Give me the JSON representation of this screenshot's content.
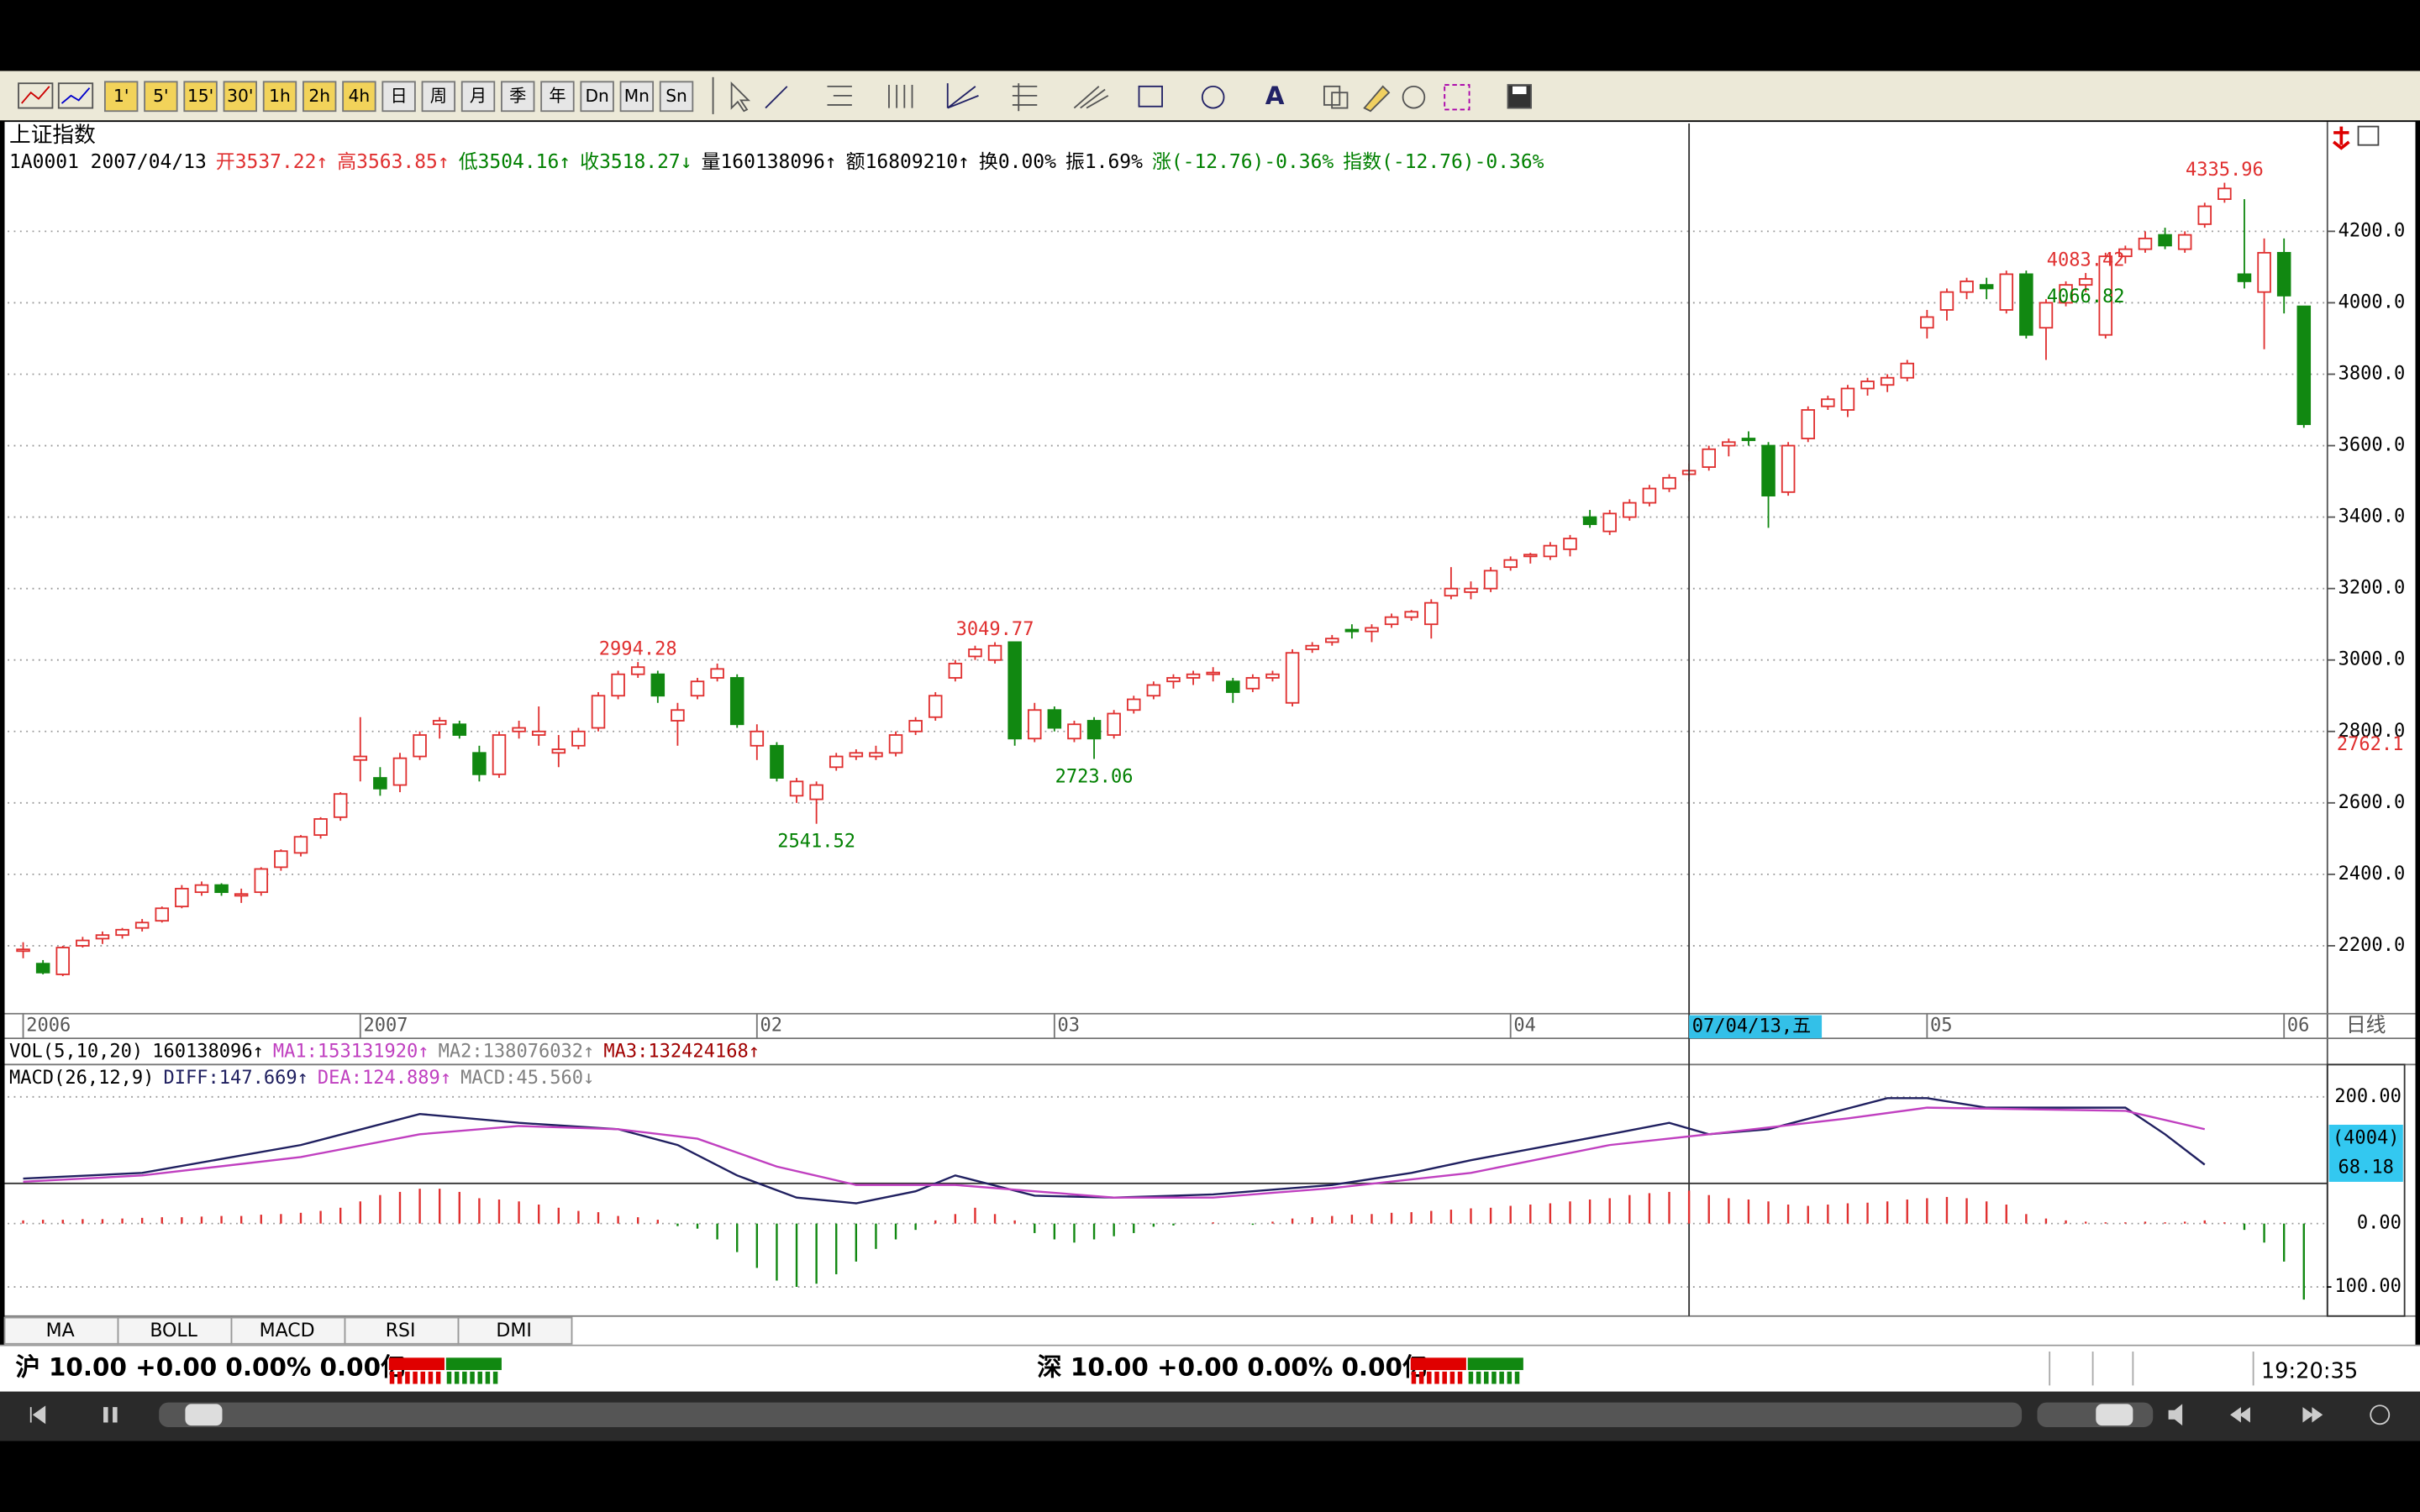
{
  "toolbar": {
    "buttons": [
      "1'",
      "5'",
      "15'",
      "30'",
      "1h",
      "2h",
      "4h",
      "日",
      "周",
      "月",
      "季",
      "年",
      "Dn",
      "Mn",
      "Sn"
    ]
  },
  "quote": {
    "name": "上证指数",
    "fields": [
      {
        "text": "1A0001 2007/04/13",
        "color": "#000000"
      },
      {
        "text": "开3537.22↑",
        "color": "#e03030"
      },
      {
        "text": "高3563.85↑",
        "color": "#e03030"
      },
      {
        "text": "低3504.16↑",
        "color": "#008000"
      },
      {
        "text": "收3518.27↓",
        "color": "#008000"
      },
      {
        "text": "量160138096↑",
        "color": "#000000"
      },
      {
        "text": "额16809210↑",
        "color": "#000000"
      },
      {
        "text": "换0.00%",
        "color": "#000000"
      },
      {
        "text": "振1.69%",
        "color": "#000000"
      },
      {
        "text": "涨(-12.76)-0.36%",
        "color": "#008000"
      },
      {
        "text": "指数(-12.76)-0.36%",
        "color": "#008000"
      }
    ]
  },
  "chart_data": [
    {
      "type": "candlestick",
      "up_color": "#e03030",
      "down_color": "#118811",
      "ylim": [
        2010,
        4502
      ],
      "yticks": [
        {
          "value": 2200,
          "label": "2200.0"
        },
        {
          "value": 2400,
          "label": "2400.0"
        },
        {
          "value": 2600,
          "label": "2600.0"
        },
        {
          "value": 2800,
          "label": "2800.0"
        },
        {
          "value": 3000,
          "label": "3000.0"
        },
        {
          "value": 3200,
          "label": "3200.0"
        },
        {
          "value": 3400,
          "label": "3400.0"
        },
        {
          "value": 3600,
          "label": "3600.0"
        },
        {
          "value": 3800,
          "label": "3800.0"
        },
        {
          "value": 4000,
          "label": "4000.0"
        },
        {
          "value": 4200,
          "label": "4200.0"
        }
      ],
      "grid": true,
      "xticks": [
        {
          "value": 0,
          "label": "2006"
        },
        {
          "value": 17,
          "label": "2007"
        },
        {
          "value": 37,
          "label": "02"
        },
        {
          "value": 52,
          "label": "03"
        },
        {
          "value": 75,
          "label": "04"
        },
        {
          "value": 96,
          "label": "05"
        },
        {
          "value": 114,
          "label": "06"
        }
      ],
      "period": "日线",
      "cursor": {
        "x": 84,
        "label": "07/04/13,五"
      },
      "cursor_price": 2762.1,
      "annotations": [
        {
          "value": 4335.96,
          "x": 111,
          "color": "#e03030"
        },
        {
          "value": 4083.42,
          "x": 104,
          "color": "#e03030"
        },
        {
          "value": 4066.82,
          "x": 104,
          "color": "#008000"
        },
        {
          "value": 3049.77,
          "x": 49,
          "color": "#e03030"
        },
        {
          "value": 2994.28,
          "x": 31,
          "color": "#e03030"
        },
        {
          "value": 2723.06,
          "x": 54,
          "color": "#008000"
        },
        {
          "value": 2541.52,
          "x": 40,
          "color": "#008000"
        }
      ],
      "ohlc": [
        [
          2185,
          2210,
          2165,
          2190
        ],
        [
          2150,
          2160,
          2120,
          2125
        ],
        [
          2120,
          2200,
          2115,
          2195
        ],
        [
          2200,
          2225,
          2195,
          2215
        ],
        [
          2220,
          2240,
          2205,
          2230
        ],
        [
          2230,
          2250,
          2220,
          2245
        ],
        [
          2250,
          2275,
          2240,
          2265
        ],
        [
          2270,
          2310,
          2265,
          2305
        ],
        [
          2310,
          2370,
          2305,
          2360
        ],
        [
          2350,
          2380,
          2340,
          2370
        ],
        [
          2370,
          2375,
          2340,
          2350
        ],
        [
          2340,
          2360,
          2320,
          2345
        ],
        [
          2350,
          2420,
          2340,
          2415
        ],
        [
          2420,
          2470,
          2410,
          2465
        ],
        [
          2460,
          2510,
          2450,
          2505
        ],
        [
          2510,
          2560,
          2500,
          2555
        ],
        [
          2560,
          2630,
          2550,
          2625
        ],
        [
          2720,
          2840,
          2660,
          2730
        ],
        [
          2670,
          2700,
          2620,
          2640
        ],
        [
          2650,
          2740,
          2630,
          2725
        ],
        [
          2730,
          2800,
          2720,
          2790
        ],
        [
          2820,
          2840,
          2780,
          2830
        ],
        [
          2820,
          2830,
          2780,
          2790
        ],
        [
          2740,
          2760,
          2660,
          2680
        ],
        [
          2680,
          2800,
          2670,
          2790
        ],
        [
          2800,
          2830,
          2780,
          2810
        ],
        [
          2790,
          2870,
          2760,
          2800
        ],
        [
          2740,
          2790,
          2700,
          2750
        ],
        [
          2760,
          2810,
          2750,
          2800
        ],
        [
          2810,
          2910,
          2800,
          2900
        ],
        [
          2900,
          2970,
          2890,
          2960
        ],
        [
          2960,
          2994.28,
          2950,
          2980
        ],
        [
          2960,
          2970,
          2880,
          2900
        ],
        [
          2830,
          2880,
          2760,
          2860
        ],
        [
          2900,
          2950,
          2890,
          2940
        ],
        [
          2950,
          2990,
          2940,
          2975
        ],
        [
          2950,
          2960,
          2810,
          2820
        ],
        [
          2760,
          2820,
          2720,
          2800
        ],
        [
          2760,
          2770,
          2660,
          2670
        ],
        [
          2620,
          2670,
          2600,
          2660
        ],
        [
          2610,
          2660,
          2541.52,
          2650
        ],
        [
          2700,
          2740,
          2690,
          2730
        ],
        [
          2730,
          2750,
          2720,
          2740
        ],
        [
          2730,
          2760,
          2720,
          2740
        ],
        [
          2740,
          2800,
          2730,
          2790
        ],
        [
          2800,
          2840,
          2790,
          2830
        ],
        [
          2840,
          2910,
          2830,
          2900
        ],
        [
          2950,
          3000,
          2940,
          2990
        ],
        [
          3010,
          3040,
          3000,
          3030
        ],
        [
          3000,
          3049.77,
          2990,
          3040
        ],
        [
          3050,
          3050,
          2760,
          2780
        ],
        [
          2780,
          2880,
          2770,
          2860
        ],
        [
          2860,
          2870,
          2800,
          2810
        ],
        [
          2780,
          2830,
          2770,
          2820
        ],
        [
          2830,
          2840,
          2723.06,
          2780
        ],
        [
          2790,
          2860,
          2780,
          2850
        ],
        [
          2860,
          2900,
          2850,
          2890
        ],
        [
          2900,
          2940,
          2890,
          2930
        ],
        [
          2940,
          2960,
          2920,
          2950
        ],
        [
          2950,
          2970,
          2930,
          2960
        ],
        [
          2960,
          2980,
          2940,
          2965
        ],
        [
          2940,
          2950,
          2880,
          2910
        ],
        [
          2920,
          2960,
          2910,
          2950
        ],
        [
          2950,
          2970,
          2940,
          2960
        ],
        [
          2880,
          3030,
          2870,
          3020
        ],
        [
          3030,
          3050,
          3020,
          3040
        ],
        [
          3050,
          3070,
          3040,
          3060
        ],
        [
          3085,
          3100,
          3060,
          3080
        ],
        [
          3080,
          3100,
          3050,
          3090
        ],
        [
          3100,
          3130,
          3090,
          3120
        ],
        [
          3120,
          3140,
          3110,
          3135
        ],
        [
          3100,
          3170,
          3060,
          3160
        ],
        [
          3180,
          3260,
          3170,
          3200
        ],
        [
          3190,
          3220,
          3170,
          3200
        ],
        [
          3200,
          3260,
          3190,
          3250
        ],
        [
          3260,
          3290,
          3250,
          3280
        ],
        [
          3290,
          3300,
          3270,
          3295
        ],
        [
          3290,
          3330,
          3280,
          3320
        ],
        [
          3310,
          3350,
          3290,
          3340
        ],
        [
          3400,
          3420,
          3370,
          3380
        ],
        [
          3360,
          3420,
          3350,
          3410
        ],
        [
          3400,
          3450,
          3390,
          3440
        ],
        [
          3440,
          3490,
          3430,
          3480
        ],
        [
          3480,
          3520,
          3470,
          3510
        ],
        [
          3520,
          3550,
          3500,
          3530
        ],
        [
          3540,
          3600,
          3530,
          3590
        ],
        [
          3600,
          3620,
          3570,
          3610
        ],
        [
          3620,
          3640,
          3600,
          3615
        ],
        [
          3600,
          3610,
          3370,
          3460
        ],
        [
          3470,
          3610,
          3460,
          3600
        ],
        [
          3620,
          3710,
          3610,
          3700
        ],
        [
          3710,
          3740,
          3700,
          3730
        ],
        [
          3700,
          3770,
          3680,
          3760
        ],
        [
          3760,
          3790,
          3740,
          3780
        ],
        [
          3770,
          3800,
          3750,
          3790
        ],
        [
          3790,
          3840,
          3780,
          3830
        ],
        [
          3930,
          3980,
          3900,
          3960
        ],
        [
          3980,
          4040,
          3950,
          4030
        ],
        [
          4030,
          4070,
          4010,
          4060
        ],
        [
          4050,
          4070,
          4010,
          4040
        ],
        [
          3980,
          4090,
          3970,
          4080
        ],
        [
          4080,
          4090,
          3900,
          3910
        ],
        [
          3930,
          4010,
          3840,
          4000
        ],
        [
          4000,
          4060,
          3990,
          4050
        ],
        [
          4050,
          4083.42,
          4030,
          4066.82
        ],
        [
          3910,
          4140,
          3900,
          4130
        ],
        [
          4130,
          4160,
          4110,
          4150
        ],
        [
          4150,
          4200,
          4140,
          4180
        ],
        [
          4190,
          4210,
          4150,
          4160
        ],
        [
          4150,
          4200,
          4140,
          4190
        ],
        [
          4220,
          4280,
          4210,
          4270
        ],
        [
          4290,
          4335.96,
          4280,
          4320
        ],
        [
          4080,
          4290,
          4040,
          4060
        ],
        [
          4030,
          4180,
          3870,
          4140
        ],
        [
          4140,
          4180,
          3970,
          4020
        ],
        [
          3990,
          3990,
          3650,
          3660
        ]
      ]
    },
    {
      "type": "macd",
      "ylim": [
        -146,
        251
      ],
      "yticks": [
        {
          "value": 200,
          "label": "200.00"
        },
        {
          "value": 0,
          "label": "0.00"
        },
        {
          "value": -100,
          "label": "-100.00"
        }
      ],
      "readout": [
        "(4004)",
        "68.18"
      ],
      "series": [
        {
          "color": "#202060",
          "x": [
            0,
            6,
            14,
            20,
            25,
            30,
            33,
            36,
            39,
            42,
            45,
            47,
            51,
            55,
            60,
            66,
            70,
            73,
            80,
            83,
            85,
            88,
            94,
            96,
            99,
            106,
            108,
            110
          ],
          "values": [
            71,
            80,
            124,
            173,
            159,
            149,
            124,
            76,
            41,
            32,
            51,
            76,
            44,
            41,
            46,
            61,
            80,
            100,
            141,
            159,
            141,
            149,
            198,
            198,
            183,
            183,
            141,
            93
          ]
        },
        {
          "color": "#c040c0",
          "x": [
            0,
            6,
            14,
            20,
            25,
            30,
            34,
            38,
            42,
            47,
            51,
            55,
            60,
            66,
            73,
            80,
            85,
            92,
            96,
            106,
            110
          ],
          "values": [
            66,
            76,
            105,
            141,
            154,
            149,
            134,
            90,
            61,
            61,
            51,
            41,
            41,
            56,
            80,
            124,
            141,
            166,
            183,
            178,
            149
          ]
        }
      ],
      "histogram": {
        "up_color": "#e03030",
        "down_color": "#118811",
        "values": [
          5,
          6,
          6,
          7,
          7,
          8,
          9,
          10,
          10,
          11,
          12,
          12,
          14,
          15,
          17,
          20,
          25,
          35,
          45,
          50,
          55,
          55,
          50,
          40,
          38,
          35,
          30,
          25,
          20,
          18,
          12,
          10,
          6,
          -4,
          -8,
          -25,
          -45,
          -70,
          -90,
          -100,
          -95,
          -80,
          -60,
          -40,
          -25,
          -10,
          5,
          15,
          25,
          15,
          5,
          -15,
          -25,
          -30,
          -25,
          -20,
          -15,
          -5,
          -3,
          0,
          2,
          0,
          -2,
          3,
          8,
          10,
          12,
          14,
          15,
          17,
          18,
          20,
          22,
          24,
          25,
          28,
          30,
          32,
          35,
          38,
          40,
          45,
          48,
          50,
          52,
          45,
          40,
          38,
          35,
          30,
          28,
          30,
          32,
          33,
          35,
          38,
          40,
          42,
          40,
          35,
          30,
          15,
          8,
          5,
          3,
          2,
          2,
          3,
          2,
          3,
          5,
          2,
          -10,
          -30,
          -60,
          -120
        ]
      }
    }
  ],
  "indicators": {
    "vol": [
      {
        "text": "VOL(5,10,20)",
        "color": "#000000"
      },
      {
        "text": "160138096↑",
        "color": "#000000"
      },
      {
        "text": "MA1:153131920↑",
        "color": "#c040c0"
      },
      {
        "text": "MA2:138076032↑",
        "color": "#808080"
      },
      {
        "text": "MA3:132424168↑",
        "color": "#a00000"
      }
    ],
    "macd": [
      {
        "text": "MACD(26,12,9)",
        "color": "#000000"
      },
      {
        "text": "DIFF:147.669↑",
        "color": "#202060"
      },
      {
        "text": "DEA:124.889↑",
        "color": "#c040c0"
      },
      {
        "text": "MACD:45.560↓",
        "color": "#808080"
      }
    ]
  },
  "tabs": [
    "MA",
    "BOLL",
    "MACD",
    "RSI",
    "DMI"
  ],
  "status": {
    "sh": "沪 10.00 +0.00 0.00% 0.00亿",
    "sz": "深 10.00 +0.00 0.00% 0.00亿",
    "time": "19:20:35"
  }
}
